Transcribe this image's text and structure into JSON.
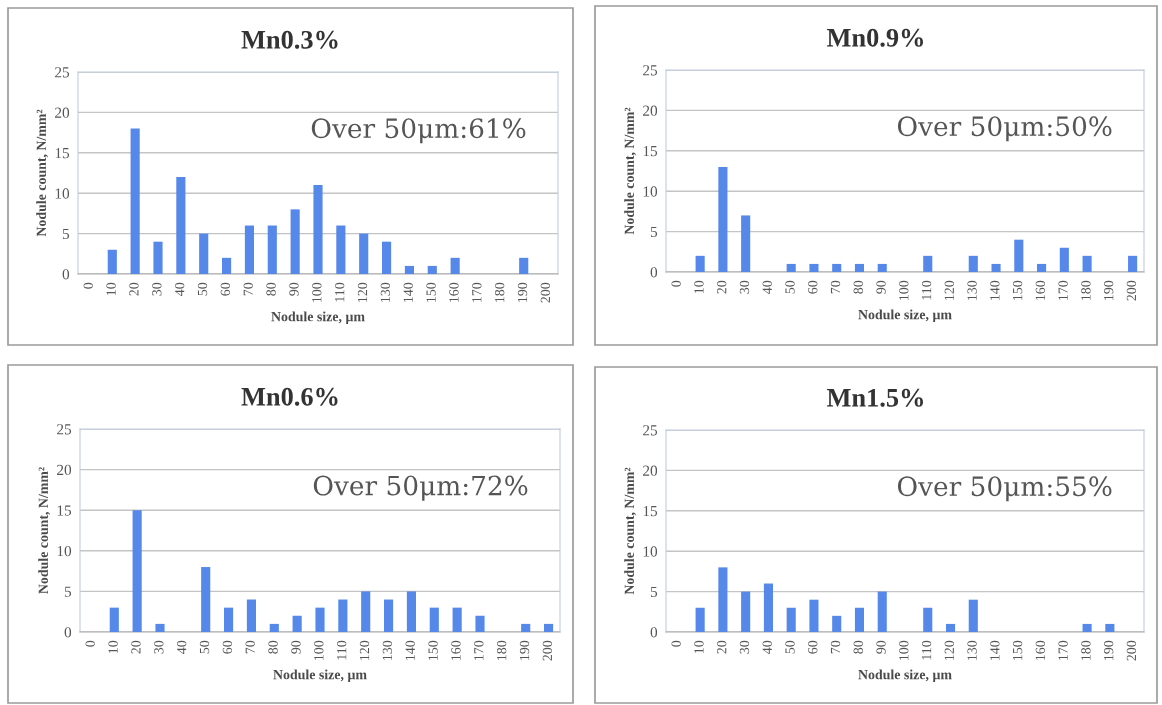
{
  "chart_data": [
    {
      "type": "bar",
      "title": "Mn0.3%",
      "xlabel": "Nodule size, µm",
      "ylabel": "Nodule count, N/mm²",
      "categories": [
        "0",
        "10",
        "20",
        "30",
        "40",
        "50",
        "60",
        "70",
        "80",
        "90",
        "100",
        "110",
        "120",
        "130",
        "140",
        "150",
        "160",
        "170",
        "180",
        "190",
        "200"
      ],
      "values": [
        0,
        3,
        18,
        4,
        12,
        5,
        2,
        6,
        6,
        8,
        11,
        6,
        5,
        4,
        1,
        1,
        2,
        0,
        0,
        2,
        0
      ],
      "color": "#5588e8",
      "ylim": [
        0,
        25
      ],
      "yticks": [
        0,
        5,
        10,
        15,
        20,
        25
      ],
      "grid": "y",
      "annotations": [
        "Over 50μm:61%"
      ]
    },
    {
      "type": "bar",
      "title": "Mn0.9%",
      "xlabel": "Nodule size, µm",
      "ylabel": "Nodule count, N/mm²",
      "categories": [
        "0",
        "10",
        "20",
        "30",
        "40",
        "50",
        "60",
        "70",
        "80",
        "90",
        "100",
        "110",
        "120",
        "130",
        "140",
        "150",
        "160",
        "170",
        "180",
        "190",
        "200"
      ],
      "values": [
        0,
        2,
        13,
        7,
        0,
        1,
        1,
        1,
        1,
        1,
        0,
        2,
        0,
        2,
        1,
        4,
        1,
        3,
        2,
        0,
        2
      ],
      "color": "#5588e8",
      "ylim": [
        0,
        25
      ],
      "yticks": [
        0,
        5,
        10,
        15,
        20,
        25
      ],
      "grid": "y",
      "annotations": [
        "Over 50μm:50%"
      ]
    },
    {
      "type": "bar",
      "title": "Mn0.6%",
      "xlabel": "Nodule size, µm",
      "ylabel": "Nodule count, N/mm²",
      "categories": [
        "0",
        "10",
        "20",
        "30",
        "40",
        "50",
        "60",
        "70",
        "80",
        "90",
        "100",
        "110",
        "120",
        "130",
        "140",
        "150",
        "160",
        "170",
        "180",
        "190",
        "200"
      ],
      "values": [
        0,
        3,
        15,
        1,
        0,
        8,
        3,
        4,
        1,
        2,
        3,
        4,
        5,
        4,
        5,
        3,
        3,
        2,
        0,
        1,
        1
      ],
      "color": "#5588e8",
      "ylim": [
        0,
        25
      ],
      "yticks": [
        0,
        5,
        10,
        15,
        20,
        25
      ],
      "grid": "y",
      "annotations": [
        "Over 50μm:72%"
      ]
    },
    {
      "type": "bar",
      "title": "Mn1.5%",
      "xlabel": "Nodule size, µm",
      "ylabel": "Nodule count, N/mm²",
      "categories": [
        "0",
        "10",
        "20",
        "30",
        "40",
        "50",
        "60",
        "70",
        "80",
        "90",
        "100",
        "110",
        "120",
        "130",
        "140",
        "150",
        "160",
        "170",
        "180",
        "190",
        "200"
      ],
      "values": [
        0,
        3,
        8,
        5,
        6,
        3,
        4,
        2,
        3,
        5,
        0,
        3,
        1,
        4,
        0,
        0,
        0,
        0,
        1,
        1,
        0
      ],
      "color": "#5588e8",
      "ylim": [
        0,
        25
      ],
      "yticks": [
        0,
        5,
        10,
        15,
        20,
        25
      ],
      "grid": "y",
      "annotations": [
        "Over 50μm:55%"
      ]
    }
  ]
}
